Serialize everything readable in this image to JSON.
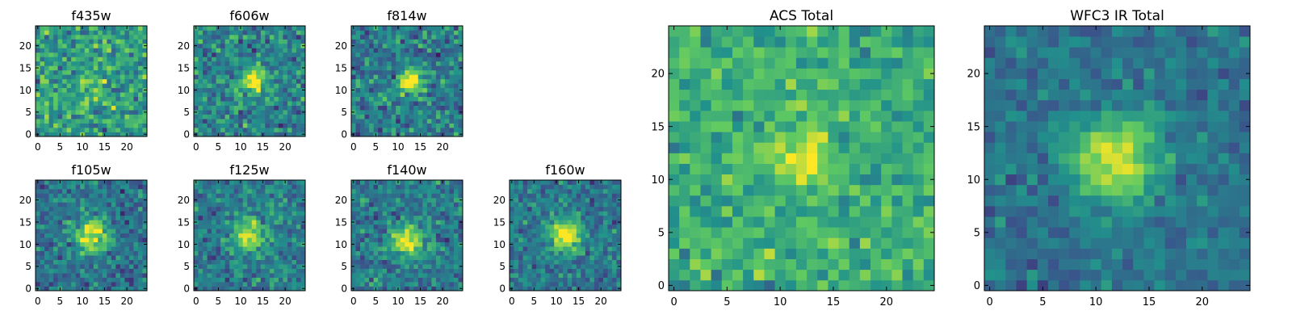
{
  "figure": {
    "colormap": "viridis",
    "colormap_stops": [
      "#440154",
      "#3b528b",
      "#21918c",
      "#5ec962",
      "#fde725"
    ]
  },
  "chart_data": [
    {
      "type": "heatmap",
      "title": "f435w",
      "grid": false,
      "x_range": [
        -0.5,
        24.5
      ],
      "y_range": [
        -0.5,
        24.5
      ],
      "origin": "lower",
      "x_ticks": [
        0,
        5,
        10,
        15,
        20
      ],
      "y_ticks": [
        0,
        5,
        10,
        15,
        20
      ],
      "field_size": 25,
      "source_center": [
        12,
        12
      ],
      "source_sigma": 2.5,
      "source_amplitude": 0.15,
      "noise_level": 0.42,
      "base_level": 0.55,
      "seed": 11
    },
    {
      "type": "heatmap",
      "title": "f606w",
      "grid": false,
      "x_range": [
        -0.5,
        24.5
      ],
      "y_range": [
        -0.5,
        24.5
      ],
      "origin": "lower",
      "x_ticks": [
        0,
        5,
        10,
        15,
        20
      ],
      "y_ticks": [
        0,
        5,
        10,
        15,
        20
      ],
      "field_size": 25,
      "source_center": [
        13,
        12
      ],
      "source_sigma": 2.0,
      "source_amplitude": 0.55,
      "noise_level": 0.38,
      "base_level": 0.45,
      "seed": 23
    },
    {
      "type": "heatmap",
      "title": "f814w",
      "grid": false,
      "x_range": [
        -0.5,
        24.5
      ],
      "y_range": [
        -0.5,
        24.5
      ],
      "origin": "lower",
      "x_ticks": [
        0,
        5,
        10,
        15,
        20
      ],
      "y_ticks": [
        0,
        5,
        10,
        15,
        20
      ],
      "field_size": 25,
      "source_center": [
        13,
        12
      ],
      "source_sigma": 1.8,
      "source_amplitude": 0.7,
      "noise_level": 0.38,
      "base_level": 0.42,
      "seed": 37
    },
    {
      "type": "heatmap",
      "title": "f105w",
      "grid": false,
      "x_range": [
        -0.5,
        24.5
      ],
      "y_range": [
        -0.5,
        24.5
      ],
      "origin": "lower",
      "x_ticks": [
        0,
        5,
        10,
        15,
        20
      ],
      "y_ticks": [
        0,
        5,
        10,
        15,
        20
      ],
      "field_size": 25,
      "source_center": [
        12,
        12
      ],
      "source_sigma": 2.6,
      "source_amplitude": 0.6,
      "noise_level": 0.32,
      "base_level": 0.38,
      "seed": 41
    },
    {
      "type": "heatmap",
      "title": "f125w",
      "grid": false,
      "x_range": [
        -0.5,
        24.5
      ],
      "y_range": [
        -0.5,
        24.5
      ],
      "origin": "lower",
      "x_ticks": [
        0,
        5,
        10,
        15,
        20
      ],
      "y_ticks": [
        0,
        5,
        10,
        15,
        20
      ],
      "field_size": 25,
      "source_center": [
        12,
        12
      ],
      "source_sigma": 2.4,
      "source_amplitude": 0.55,
      "noise_level": 0.32,
      "base_level": 0.42,
      "seed": 53
    },
    {
      "type": "heatmap",
      "title": "f140w",
      "grid": false,
      "x_range": [
        -0.5,
        24.5
      ],
      "y_range": [
        -0.5,
        24.5
      ],
      "origin": "lower",
      "x_ticks": [
        0,
        5,
        10,
        15,
        20
      ],
      "y_ticks": [
        0,
        5,
        10,
        15,
        20
      ],
      "field_size": 25,
      "source_center": [
        12,
        11
      ],
      "source_sigma": 2.4,
      "source_amplitude": 0.6,
      "noise_level": 0.32,
      "base_level": 0.42,
      "seed": 67
    },
    {
      "type": "heatmap",
      "title": "f160w",
      "grid": false,
      "x_range": [
        -0.5,
        24.5
      ],
      "y_range": [
        -0.5,
        24.5
      ],
      "origin": "lower",
      "x_ticks": [
        0,
        5,
        10,
        15,
        20
      ],
      "y_ticks": [
        0,
        5,
        10,
        15,
        20
      ],
      "field_size": 25,
      "source_center": [
        12,
        12
      ],
      "source_sigma": 2.4,
      "source_amplitude": 0.65,
      "noise_level": 0.3,
      "base_level": 0.4,
      "seed": 79
    },
    {
      "type": "heatmap",
      "title": "ACS Total",
      "grid": false,
      "x_range": [
        -0.5,
        24.5
      ],
      "y_range": [
        -0.5,
        24.5
      ],
      "origin": "lower",
      "x_ticks": [
        0,
        5,
        10,
        15,
        20
      ],
      "y_ticks": [
        0,
        5,
        10,
        15,
        20
      ],
      "field_size": 25,
      "source_center": [
        12,
        12
      ],
      "source_sigma": 1.6,
      "source_amplitude": 0.45,
      "noise_level": 0.3,
      "base_level": 0.62,
      "seed": 97
    },
    {
      "type": "heatmap",
      "title": "WFC3 IR Total",
      "grid": false,
      "x_range": [
        -0.5,
        24.5
      ],
      "y_range": [
        -0.5,
        24.5
      ],
      "origin": "lower",
      "x_ticks": [
        0,
        5,
        10,
        15,
        20
      ],
      "y_ticks": [
        0,
        5,
        10,
        15,
        20
      ],
      "field_size": 25,
      "source_center": [
        12,
        12
      ],
      "source_sigma": 2.8,
      "source_amplitude": 0.6,
      "noise_level": 0.22,
      "base_level": 0.38,
      "seed": 113
    }
  ]
}
